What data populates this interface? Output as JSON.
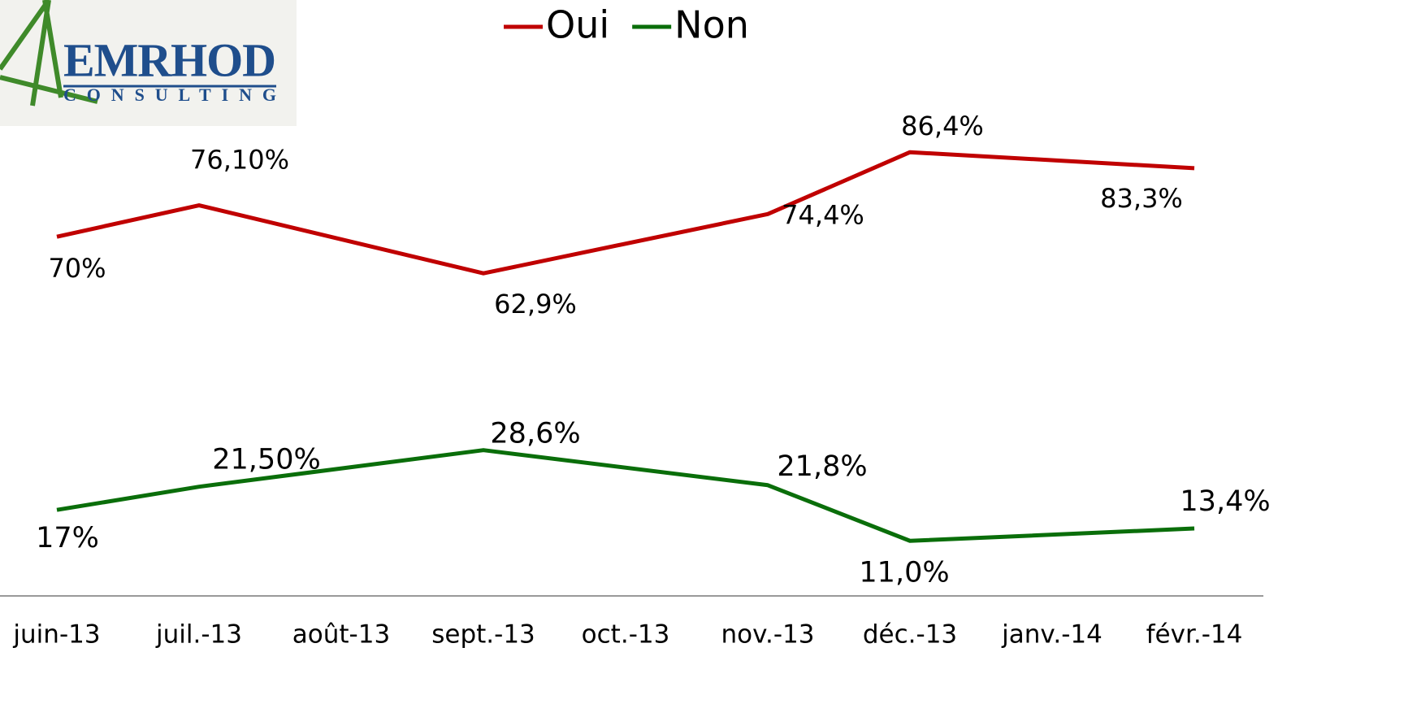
{
  "logo": {
    "name": "EMRHOD",
    "tagline": "CONSULTING"
  },
  "chart_data": {
    "type": "line",
    "categories": [
      "juin-13",
      "juil.-13",
      "août-13",
      "sept.-13",
      "oct.-13",
      "nov.-13",
      "déc.-13",
      "janv.-14",
      "févr.-14"
    ],
    "ylim": [
      0,
      100
    ],
    "legend": "top",
    "series": [
      {
        "name": "Oui",
        "color": "#c00000",
        "values": [
          70,
          76.1,
          null,
          62.9,
          null,
          74.4,
          86.4,
          null,
          83.3
        ],
        "value_labels": [
          "70%",
          "76,10%",
          null,
          "62,9%",
          null,
          "74,4%",
          "86,4%",
          null,
          "83,3%"
        ]
      },
      {
        "name": "Non",
        "color": "#0a6e0a",
        "values": [
          17,
          21.5,
          null,
          28.6,
          null,
          21.8,
          11.0,
          null,
          13.4
        ],
        "value_labels": [
          "17%",
          "21,50%",
          null,
          "28,6%",
          null,
          "21,8%",
          "11,0%",
          null,
          "13,4%"
        ]
      }
    ]
  }
}
